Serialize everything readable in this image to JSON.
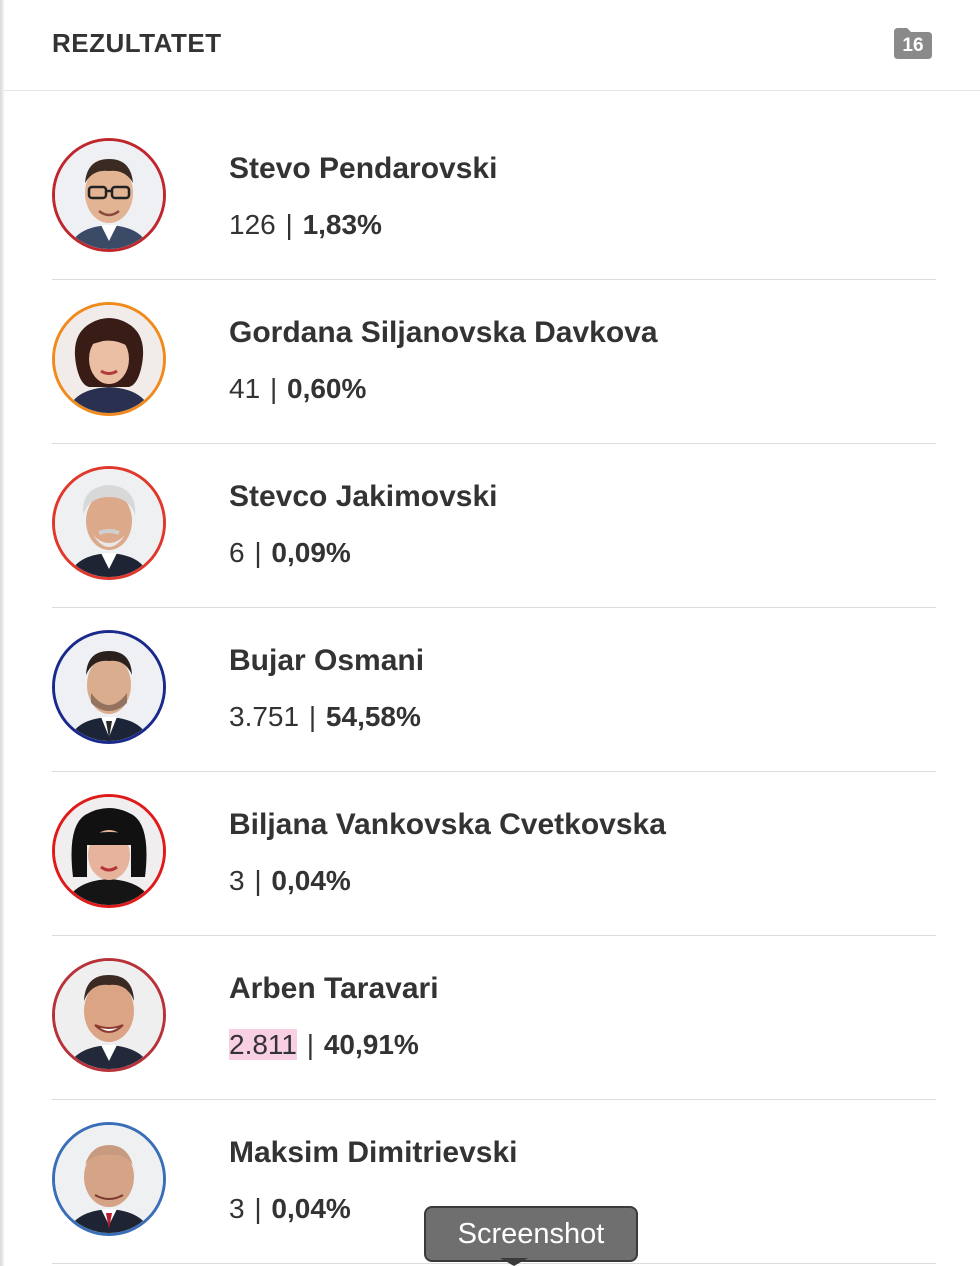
{
  "header": {
    "title": "REZULTATET",
    "badge_count": "16",
    "badge_icon": "folder-icon",
    "badge_color": "#8a8a8a"
  },
  "candidates": [
    {
      "name": "Stevo Pendarovski",
      "votes": "126",
      "separator": "|",
      "percent": "1,83%",
      "ring_color": "#c0272d",
      "highlight_votes": false
    },
    {
      "name": "Gordana Siljanovska Davkova",
      "votes": "41",
      "separator": "|",
      "percent": "0,60%",
      "ring_color": "#f08a1c",
      "highlight_votes": false
    },
    {
      "name": "Stevco Jakimovski",
      "votes": "6",
      "separator": "|",
      "percent": "0,09%",
      "ring_color": "#e0382c",
      "highlight_votes": false
    },
    {
      "name": "Bujar Osmani",
      "votes": "3.751",
      "separator": "|",
      "percent": "54,58%",
      "ring_color": "#1a2a8c",
      "highlight_votes": false
    },
    {
      "name": "Biljana Vankovska Cvetkovska",
      "votes": "3",
      "separator": "|",
      "percent": "0,04%",
      "ring_color": "#e01a1a",
      "highlight_votes": false
    },
    {
      "name": "Arben Taravari",
      "votes": "2.811",
      "separator": "|",
      "percent": "40,91%",
      "ring_color": "#b8323a",
      "highlight_votes": true
    },
    {
      "name": "Maksim Dimitrievski",
      "votes": "3",
      "separator": "|",
      "percent": "0,04%",
      "ring_color": "#3a6fb8",
      "highlight_votes": false
    }
  ],
  "tooltip": {
    "label": "Screenshot"
  }
}
